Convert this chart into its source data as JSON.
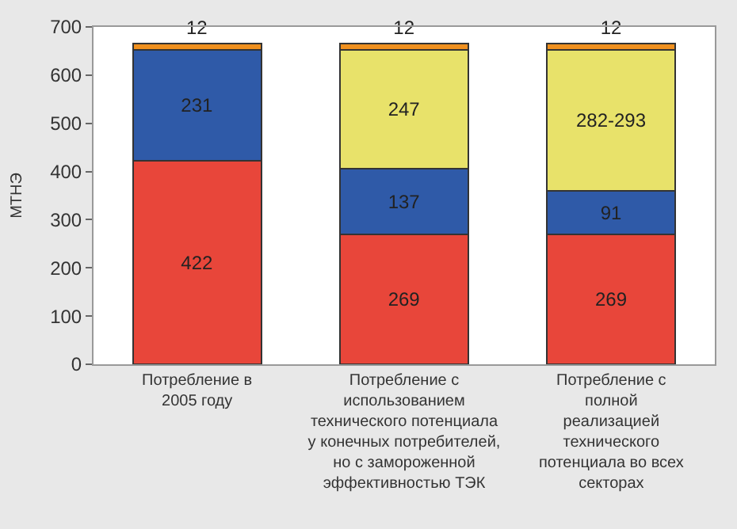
{
  "chart_data": {
    "type": "bar",
    "stacked": true,
    "ylabel": "МТНЭ",
    "categories": [
      "Потребление в\n2005 году",
      "Потребление с\nиспользованием\nтехнического потенциала\nу конечных потребителей,\nно с замороженной\nэффективностью ТЭК",
      "Потребление с\nполной\nреализацией\nтехнического\nпотенциала во всех\nсекторах"
    ],
    "series": [
      {
        "color": "#e8463a",
        "values": [
          422,
          269,
          269
        ],
        "value_labels": [
          "422",
          "269",
          "269"
        ]
      },
      {
        "color": "#2f5aa8",
        "values": [
          231,
          137,
          91
        ],
        "value_labels": [
          "231",
          "137",
          "91"
        ]
      },
      {
        "color": "#e8e26a",
        "values": [
          null,
          247,
          293
        ],
        "value_labels": [
          null,
          "247",
          "282-293"
        ]
      },
      {
        "color": "#f0901e",
        "values": [
          12,
          12,
          12
        ],
        "value_labels": [
          "12",
          "12",
          "12"
        ]
      }
    ],
    "ylim": [
      0,
      700
    ],
    "yticks": [
      0,
      100,
      200,
      300,
      400,
      500,
      600,
      700
    ]
  }
}
